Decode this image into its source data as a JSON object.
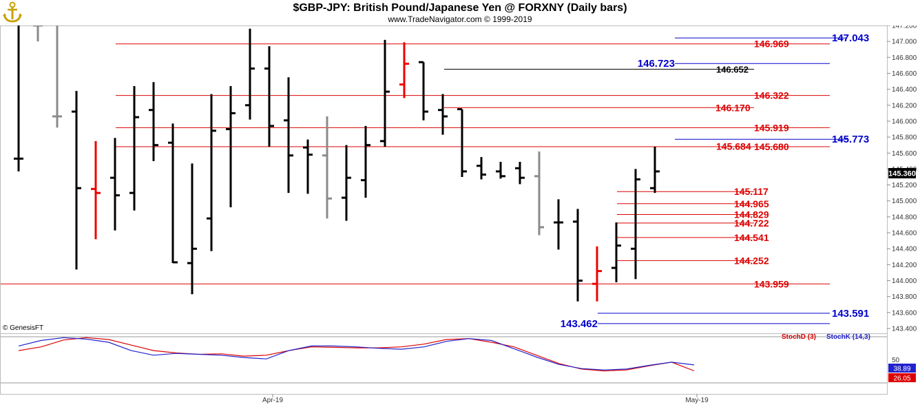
{
  "title": "$GBP-JPY:  British Pound/Japanese Yen @ FORXNY  (Daily bars)",
  "subtitle": "www.TradeNavigator.com © 1999-2019",
  "copyright": "© GenesisFT",
  "last_price_label": "145.360",
  "colors": {
    "up_bar": "#000000",
    "gray_bar": "#8a8a8a",
    "red_bar": "#ee0000",
    "red_level": "#dd0000",
    "blue_level": "#0000cc",
    "stoch_d": "#dd0000",
    "stoch_k": "#2222cc"
  },
  "chart_data": [
    {
      "type": "ohlc",
      "title": "$GBP-JPY:  British Pound/Japanese Yen @ FORXNY  (Daily bars)",
      "x_tick_labels": [
        "Apr-19",
        "May-19"
      ],
      "y_ticks": [
        "147.200",
        "147.000",
        "146.800",
        "146.600",
        "146.400",
        "146.200",
        "146.000",
        "145.800",
        "145.600",
        "145.400",
        "145.200",
        "145.000",
        "144.800",
        "144.600",
        "144.400",
        "144.200",
        "144.000",
        "143.800",
        "143.600",
        "143.400"
      ],
      "ylim": [
        143.4,
        147.25
      ],
      "last_price": 145.36,
      "bars": [
        {
          "o": 145.53,
          "h": 147.25,
          "l": 145.37,
          "c": 145.53,
          "color": "black"
        },
        {
          "o": 147.2,
          "h": 147.25,
          "l": 147.0,
          "c": 147.25,
          "color": "gray"
        },
        {
          "o": 146.06,
          "h": 147.25,
          "l": 145.92,
          "c": 146.06,
          "color": "gray"
        },
        {
          "o": 146.12,
          "h": 146.38,
          "l": 144.14,
          "c": 145.16,
          "color": "black"
        },
        {
          "o": 145.15,
          "h": 145.75,
          "l": 144.52,
          "c": 145.1,
          "color": "red"
        },
        {
          "o": 145.29,
          "h": 145.79,
          "l": 144.63,
          "c": 145.07,
          "color": "black"
        },
        {
          "o": 145.1,
          "h": 146.44,
          "l": 144.88,
          "c": 146.05,
          "color": "black"
        },
        {
          "o": 146.14,
          "h": 146.49,
          "l": 145.5,
          "c": 145.7,
          "color": "black"
        },
        {
          "o": 145.73,
          "h": 145.97,
          "l": 144.22,
          "c": 144.23,
          "color": "black"
        },
        {
          "o": 144.22,
          "h": 145.47,
          "l": 143.83,
          "c": 144.4,
          "color": "black"
        },
        {
          "o": 144.78,
          "h": 146.34,
          "l": 144.37,
          "c": 145.88,
          "color": "black"
        },
        {
          "o": 145.9,
          "h": 146.44,
          "l": 144.92,
          "c": 146.1,
          "color": "black"
        },
        {
          "o": 146.2,
          "h": 147.16,
          "l": 146.02,
          "c": 146.66,
          "color": "black"
        },
        {
          "o": 146.66,
          "h": 146.94,
          "l": 145.68,
          "c": 145.94,
          "color": "black"
        },
        {
          "o": 146.01,
          "h": 146.55,
          "l": 145.1,
          "c": 145.57,
          "color": "black"
        },
        {
          "o": 145.67,
          "h": 145.77,
          "l": 145.09,
          "c": 145.58,
          "color": "black"
        },
        {
          "o": 145.57,
          "h": 146.06,
          "l": 144.78,
          "c": 145.03,
          "color": "gray"
        },
        {
          "o": 145.04,
          "h": 145.7,
          "l": 144.75,
          "c": 145.29,
          "color": "black"
        },
        {
          "o": 145.26,
          "h": 145.94,
          "l": 145.04,
          "c": 145.7,
          "color": "black"
        },
        {
          "o": 145.75,
          "h": 147.02,
          "l": 145.68,
          "c": 146.37,
          "color": "black"
        },
        {
          "o": 146.46,
          "h": 146.99,
          "l": 146.29,
          "c": 146.72,
          "color": "red"
        },
        {
          "o": 146.74,
          "h": 146.74,
          "l": 146.01,
          "c": 146.12,
          "color": "black"
        },
        {
          "o": 146.14,
          "h": 146.34,
          "l": 145.83,
          "c": 146.06,
          "color": "black"
        },
        {
          "o": 146.15,
          "h": 146.15,
          "l": 145.3,
          "c": 145.37,
          "color": "black"
        },
        {
          "o": 145.44,
          "h": 145.55,
          "l": 145.27,
          "c": 145.33,
          "color": "black"
        },
        {
          "o": 145.37,
          "h": 145.49,
          "l": 145.28,
          "c": 145.31,
          "color": "black"
        },
        {
          "o": 145.41,
          "h": 145.49,
          "l": 145.21,
          "c": 145.29,
          "color": "black"
        },
        {
          "o": 145.31,
          "h": 145.62,
          "l": 144.57,
          "c": 144.67,
          "color": "gray"
        },
        {
          "o": 144.73,
          "h": 145.02,
          "l": 144.39,
          "c": 144.73,
          "color": "black"
        },
        {
          "o": 144.74,
          "h": 144.9,
          "l": 143.74,
          "c": 144.0,
          "color": "black"
        },
        {
          "o": 143.96,
          "h": 144.43,
          "l": 143.74,
          "c": 144.12,
          "color": "red"
        },
        {
          "o": 144.16,
          "h": 144.73,
          "l": 143.98,
          "c": 144.44,
          "color": "black"
        },
        {
          "o": 144.4,
          "h": 145.4,
          "l": 144.02,
          "c": 145.27,
          "color": "black"
        },
        {
          "o": 145.16,
          "h": 145.68,
          "l": 145.1,
          "c": 145.37,
          "color": "black"
        }
      ],
      "levels": [
        {
          "value": 147.043,
          "label": "147.043",
          "color": "blue"
        },
        {
          "value": 146.969,
          "label": "146.969",
          "color": "red"
        },
        {
          "value": 146.723,
          "label": "146.723",
          "color": "blue"
        },
        {
          "value": 146.652,
          "label": "146.652",
          "color": "black"
        },
        {
          "value": 146.322,
          "label": "146.322",
          "color": "red"
        },
        {
          "value": 146.17,
          "label": "146.170",
          "color": "red"
        },
        {
          "value": 145.919,
          "label": "145.919",
          "color": "red"
        },
        {
          "value": 145.773,
          "label": "145.773",
          "color": "blue"
        },
        {
          "value": 145.684,
          "label": "145.684",
          "color": "red"
        },
        {
          "value": 145.68,
          "label": "145.680",
          "color": "red"
        },
        {
          "value": 145.117,
          "label": "145.117",
          "color": "red"
        },
        {
          "value": 144.965,
          "label": "144.965",
          "color": "red"
        },
        {
          "value": 144.829,
          "label": "144.829",
          "color": "red"
        },
        {
          "value": 144.722,
          "label": "144.722",
          "color": "red"
        },
        {
          "value": 144.541,
          "label": "144.541",
          "color": "red"
        },
        {
          "value": 144.252,
          "label": "144.252",
          "color": "red"
        },
        {
          "value": 143.959,
          "label": "143.959",
          "color": "red"
        },
        {
          "value": 143.591,
          "label": "143.591",
          "color": "blue"
        },
        {
          "value": 143.462,
          "label": "143.462",
          "color": "blue"
        }
      ]
    },
    {
      "type": "line",
      "ylim": [
        0,
        100
      ],
      "y_ticks": [
        "50"
      ],
      "series": [
        {
          "name": "StochD (3)",
          "color": "red",
          "last_label": "26.05",
          "values": [
            70,
            78,
            93,
            98,
            94,
            82,
            70,
            65,
            62,
            63,
            58,
            60,
            70,
            78,
            77,
            76,
            76,
            78,
            84,
            94,
            96,
            88,
            78,
            60,
            42,
            30,
            26,
            28,
            37,
            45,
            26.05
          ]
        },
        {
          "name": "StochK (14,3)",
          "color": "blue",
          "last_label": "38.89",
          "values": [
            80,
            92,
            98,
            95,
            88,
            70,
            60,
            64,
            62,
            60,
            55,
            52,
            70,
            80,
            80,
            78,
            75,
            73,
            78,
            90,
            96,
            92,
            74,
            56,
            40,
            31,
            28,
            30,
            38,
            45,
            38.89
          ]
        }
      ]
    }
  ]
}
